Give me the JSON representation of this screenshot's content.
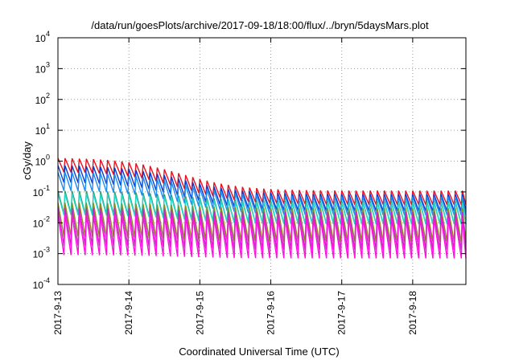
{
  "chart_data": {
    "type": "line",
    "title": "/data/run/goesPlots/archive/2017-09-18/18:00/flux/../bryn/5daysMars.plot",
    "xlabel": "Coordinated Universal Time (UTC)",
    "ylabel": "cGy/day",
    "y_scale": "log",
    "ylim": [
      0.0001,
      10000
    ],
    "xlim": [
      "2017-09-13 00:00",
      "2017-09-18 18:00"
    ],
    "grid": true,
    "legend": "none",
    "x_ticks": [
      "2017-9-13",
      "2017-9-14",
      "2017-9-15",
      "2017-9-16",
      "2017-9-17",
      "2017-9-18"
    ],
    "y_ticks": [
      {
        "base": "10",
        "exp": "-4"
      },
      {
        "base": "10",
        "exp": "-3"
      },
      {
        "base": "10",
        "exp": "-2"
      },
      {
        "base": "10",
        "exp": "-1"
      },
      {
        "base": "10",
        "exp": "0"
      },
      {
        "base": "10",
        "exp": "1"
      },
      {
        "base": "10",
        "exp": "2"
      },
      {
        "base": "10",
        "exp": "3"
      },
      {
        "base": "10",
        "exp": "4"
      }
    ],
    "sawtooth_period_hours": 2.4,
    "series": [
      {
        "color": "#e8121e",
        "peak_start": 1.3,
        "peak_end": 0.11,
        "trough_ratio": 0.35
      },
      {
        "color": "#0a3cd2",
        "peak_start": 0.75,
        "peak_end": 0.085,
        "trough_ratio": 0.28
      },
      {
        "color": "#1e8cf0",
        "peak_start": 0.45,
        "peak_end": 0.07,
        "trough_ratio": 0.25
      },
      {
        "color": "#2e9e6e",
        "peak_start": 0.11,
        "peak_end": 0.05,
        "trough_ratio": 0.18
      },
      {
        "color": "#22d6c8",
        "peak_start": 0.09,
        "peak_end": 0.045,
        "trough_ratio": 0.2
      },
      {
        "color": "#8c8c20",
        "peak_start": 0.045,
        "peak_end": 0.03,
        "trough_ratio": 0.08
      },
      {
        "color": "#cc22cc",
        "peak_start": 0.03,
        "peak_end": 0.022,
        "trough_ratio": 0.06
      },
      {
        "color": "#ff10e0",
        "peak_start": 0.018,
        "peak_end": 0.014,
        "trough_ratio": 0.05
      }
    ]
  }
}
